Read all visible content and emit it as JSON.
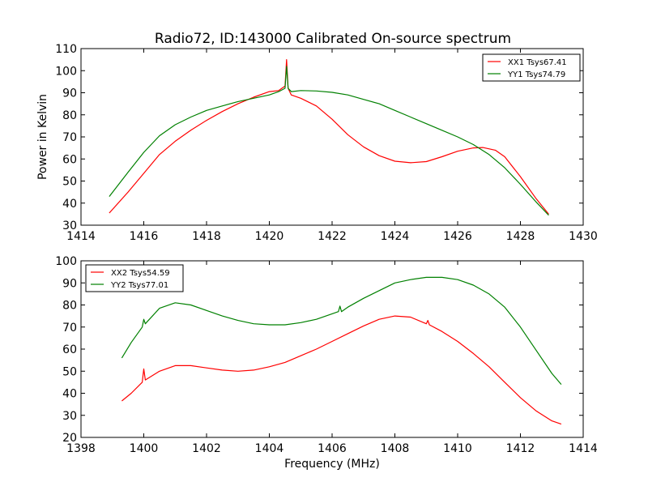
{
  "chart_data": [
    {
      "type": "line",
      "title": "Radio72, ID:143000 Calibrated On-source spectrum",
      "xlabel": "",
      "ylabel": "Power in Kelvin",
      "xlim": [
        1414,
        1430
      ],
      "ylim": [
        30,
        110
      ],
      "xticks": [
        "1414",
        "1416",
        "1418",
        "1420",
        "1422",
        "1424",
        "1426",
        "1428",
        "1430"
      ],
      "yticks": [
        "30",
        "40",
        "50",
        "60",
        "70",
        "80",
        "90",
        "100",
        "110"
      ],
      "legend_position": "top-right",
      "series": [
        {
          "name": "XX1 Tsys67.41",
          "color": "#ff0000",
          "x": [
            1414.9,
            1415.5,
            1416.0,
            1416.5,
            1417.0,
            1417.5,
            1418.0,
            1418.5,
            1419.0,
            1419.5,
            1420.0,
            1420.3,
            1420.5,
            1420.55,
            1420.6,
            1420.7,
            1421.0,
            1421.5,
            1422.0,
            1422.5,
            1423.0,
            1423.5,
            1424.0,
            1424.5,
            1425.0,
            1425.5,
            1426.0,
            1426.5,
            1426.8,
            1427.2,
            1427.5,
            1428.0,
            1428.5,
            1428.9
          ],
          "values": [
            35.5,
            45,
            53.5,
            62,
            68,
            73,
            77.5,
            81.5,
            85,
            88,
            90.5,
            91,
            93,
            105,
            92,
            89,
            87.5,
            84,
            78,
            71,
            65.5,
            61.5,
            59,
            58.3,
            58.8,
            61,
            63.5,
            65,
            65.2,
            64,
            61,
            52,
            42,
            35
          ]
        },
        {
          "name": "YY1 Tsys74.79",
          "color": "#008000",
          "x": [
            1414.9,
            1415.5,
            1416.0,
            1416.5,
            1417.0,
            1417.5,
            1418.0,
            1418.5,
            1419.0,
            1419.5,
            1420.0,
            1420.3,
            1420.5,
            1420.55,
            1420.6,
            1420.7,
            1421.0,
            1421.5,
            1422.0,
            1422.5,
            1423.0,
            1423.5,
            1424.0,
            1424.5,
            1425.0,
            1425.5,
            1426.0,
            1426.5,
            1427.0,
            1427.5,
            1428.0,
            1428.5,
            1428.9
          ],
          "values": [
            43,
            54,
            63,
            70.5,
            75.5,
            79,
            82,
            84,
            86,
            87.5,
            89,
            90.5,
            92,
            102,
            92,
            90.5,
            91,
            90.8,
            90.2,
            89,
            87,
            85,
            82,
            79,
            76,
            73,
            70,
            66.5,
            62,
            56,
            48.5,
            40.5,
            34.5
          ]
        }
      ]
    },
    {
      "type": "line",
      "title": "",
      "xlabel": "Frequency (MHz)",
      "ylabel": "",
      "xlim": [
        1398,
        1414
      ],
      "ylim": [
        20,
        100
      ],
      "xticks": [
        "1398",
        "1400",
        "1402",
        "1404",
        "1406",
        "1408",
        "1410",
        "1412",
        "1414"
      ],
      "yticks": [
        "20",
        "30",
        "40",
        "50",
        "60",
        "70",
        "80",
        "90",
        "100"
      ],
      "legend_position": "top-left",
      "series": [
        {
          "name": "XX2 Tsys54.59",
          "color": "#ff0000",
          "x": [
            1399.3,
            1399.6,
            1399.95,
            1400.0,
            1400.05,
            1400.5,
            1401.0,
            1401.5,
            1402.0,
            1402.5,
            1403.0,
            1403.5,
            1404.0,
            1404.5,
            1405.0,
            1405.5,
            1406.0,
            1406.5,
            1407.0,
            1407.5,
            1408.0,
            1408.5,
            1409.0,
            1409.05,
            1409.1,
            1409.5,
            1410.0,
            1410.5,
            1411.0,
            1411.5,
            1412.0,
            1412.5,
            1413.0,
            1413.3
          ],
          "values": [
            36.5,
            40,
            45,
            51,
            46,
            50,
            52.5,
            52.5,
            51.5,
            50.5,
            50,
            50.5,
            52,
            54,
            57,
            60,
            63.5,
            67,
            70.5,
            73.5,
            75,
            74.5,
            71.5,
            73,
            71,
            68,
            63.5,
            58,
            52,
            45,
            38,
            32,
            27.5,
            26
          ]
        },
        {
          "name": "YY2 Tsys77.01",
          "color": "#008000",
          "x": [
            1399.3,
            1399.6,
            1399.95,
            1400.0,
            1400.05,
            1400.5,
            1401.0,
            1401.5,
            1402.0,
            1402.5,
            1403.0,
            1403.5,
            1404.0,
            1404.5,
            1405.0,
            1405.5,
            1406.0,
            1406.2,
            1406.25,
            1406.3,
            1406.5,
            1407.0,
            1407.5,
            1408.0,
            1408.5,
            1409.0,
            1409.5,
            1410.0,
            1410.5,
            1411.0,
            1411.5,
            1412.0,
            1412.5,
            1413.0,
            1413.3
          ],
          "values": [
            56,
            63,
            70,
            73.5,
            71.5,
            78.5,
            81,
            80,
            77.5,
            75,
            73,
            71.5,
            71,
            71,
            72,
            73.5,
            76,
            77,
            79.5,
            77,
            79,
            83,
            86.5,
            90,
            91.5,
            92.5,
            92.5,
            91.5,
            89,
            85,
            79,
            70,
            59.5,
            49,
            44
          ]
        }
      ]
    }
  ]
}
